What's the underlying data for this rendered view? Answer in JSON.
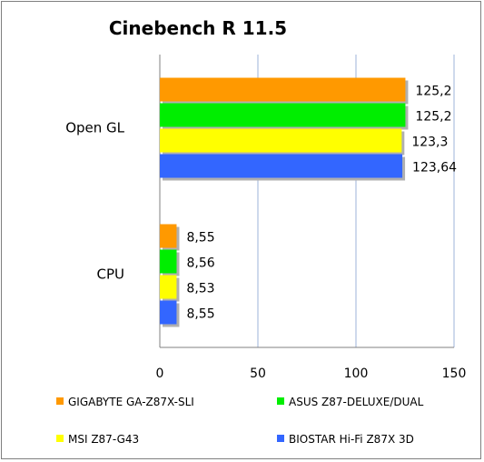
{
  "chart_data": {
    "type": "bar",
    "orientation": "horizontal",
    "title": "Cinebench R 11.5",
    "xlabel": "",
    "ylabel": "",
    "categories": [
      "Open GL",
      "CPU"
    ],
    "series": [
      {
        "name": "GIGABYTE GA-Z87X-SLI",
        "values": [
          125.2,
          8.55
        ],
        "labels": [
          "125,2",
          "8,55"
        ],
        "color": "#ff9900"
      },
      {
        "name": "ASUS Z87-DELUXE/DUAL",
        "values": [
          125.2,
          8.56
        ],
        "labels": [
          "125,2",
          "8,56"
        ],
        "color": "#00ee00"
      },
      {
        "name": "MSI Z87-G43",
        "values": [
          123.3,
          8.53
        ],
        "labels": [
          "123,3",
          "8,53"
        ],
        "color": "#ffff00"
      },
      {
        "name": "BIOSTAR Hi-Fi Z87X 3D",
        "values": [
          123.64,
          8.55
        ],
        "labels": [
          "123,64",
          "8,55"
        ],
        "color": "#3366ff"
      }
    ],
    "xlim": [
      0,
      150
    ],
    "ticks": [
      0,
      50,
      100,
      150
    ],
    "tick_labels": [
      "0",
      "50",
      "100",
      "150"
    ],
    "grid": true,
    "legend_position": "bottom"
  }
}
